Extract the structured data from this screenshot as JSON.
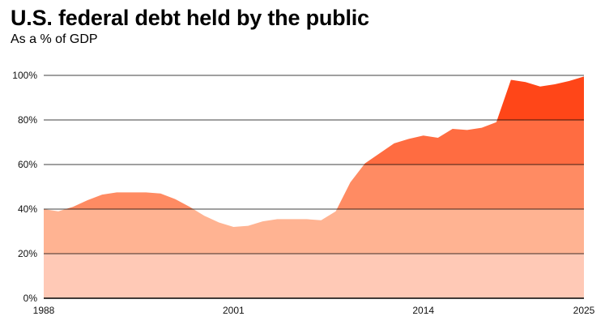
{
  "chart_data": {
    "type": "area",
    "title": "U.S. federal debt held by the public",
    "subtitle": "As a % of GDP",
    "xlabel": "",
    "ylabel": "",
    "x": [
      1988,
      1989,
      1990,
      1991,
      1992,
      1993,
      1994,
      1995,
      1996,
      1997,
      1998,
      1999,
      2000,
      2001,
      2002,
      2003,
      2004,
      2005,
      2006,
      2007,
      2008,
      2009,
      2010,
      2011,
      2012,
      2013,
      2014,
      2015,
      2016,
      2017,
      2018,
      2019,
      2020,
      2021,
      2022,
      2023,
      2024,
      2025
    ],
    "values": [
      40,
      39,
      41,
      44,
      46.5,
      47.5,
      47.5,
      47.5,
      47,
      44.5,
      41,
      37,
      34,
      32,
      32.5,
      34.5,
      35.5,
      35.5,
      35.5,
      35,
      39,
      52,
      60.5,
      65,
      69.5,
      71.5,
      73,
      72,
      76,
      75.5,
      76.5,
      79,
      98,
      97,
      95,
      96,
      97.5,
      99.5
    ],
    "ylim": [
      0,
      100
    ],
    "xlim": [
      1988,
      2025
    ],
    "yticks": [
      0,
      20,
      40,
      60,
      80,
      100
    ],
    "ytick_labels": [
      "0%",
      "20%",
      "40%",
      "60%",
      "80%",
      "100%"
    ],
    "xticks": [
      1988,
      2001,
      2014,
      2025
    ],
    "xtick_labels": [
      "1988",
      "2001",
      "2014",
      "2025"
    ],
    "grid": true,
    "band_colors": [
      "#ffc9b6",
      "#ffb392",
      "#ff8b63",
      "#ff6c41",
      "#ff4618"
    ],
    "gridline_color": "#000000"
  }
}
